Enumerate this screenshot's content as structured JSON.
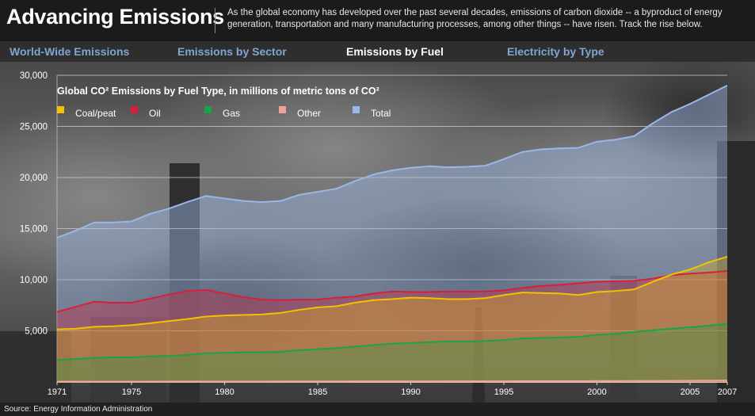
{
  "header": {
    "title": "Advancing Emissions",
    "description": "As the global economy has developed over the past several decades, emissions of carbon dioxide -- a byproduct of energy generation, transportation and many manufacturing processes, among other things -- have risen. Track the rise below."
  },
  "tabs": [
    {
      "label": "World-Wide Emissions",
      "active": false
    },
    {
      "label": "Emissions by Sector",
      "active": false
    },
    {
      "label": "Emissions by Fuel",
      "active": true
    },
    {
      "label": "Electricity by Type",
      "active": false
    }
  ],
  "source": "Source: Energy Information Administration",
  "colors": {
    "coal": "#f2c200",
    "oil": "#d81f3a",
    "gas": "#1aa34a",
    "other": "#f0a39a",
    "total": "#9bb7e8",
    "grid": "#cfcfcf",
    "tab_inactive": "#7fa6d3"
  },
  "chart_data": {
    "type": "area",
    "title": "Global CO² Emissions by Fuel Type, in millions of metric tons of CO²",
    "xlabel": "",
    "ylabel": "",
    "ylim": [
      0,
      30000
    ],
    "yticks": [
      5000,
      10000,
      15000,
      20000,
      25000,
      30000
    ],
    "ytick_labels": [
      "5,000",
      "10,000",
      "15,000",
      "20,000",
      "25,000",
      "30,000"
    ],
    "xticks": [
      1971,
      1975,
      1980,
      1985,
      1990,
      1995,
      2000,
      2005,
      2007
    ],
    "xtick_labels": [
      "1971",
      "1975",
      "1980",
      "1985",
      "1990",
      "1995",
      "2000",
      "2005",
      "2007"
    ],
    "xlim": [
      1971,
      2007
    ],
    "grid": true,
    "legend_position": "top-left",
    "x": [
      1971,
      1972,
      1973,
      1974,
      1975,
      1976,
      1977,
      1978,
      1979,
      1980,
      1981,
      1982,
      1983,
      1984,
      1985,
      1986,
      1987,
      1988,
      1989,
      1990,
      1991,
      1992,
      1993,
      1994,
      1995,
      1996,
      1997,
      1998,
      1999,
      2000,
      2001,
      2002,
      2003,
      2004,
      2005,
      2006,
      2007
    ],
    "series": [
      {
        "name": "Coal/peat",
        "key": "coal",
        "values": [
          5150,
          5200,
          5400,
          5450,
          5550,
          5750,
          5950,
          6150,
          6400,
          6500,
          6550,
          6600,
          6750,
          7050,
          7300,
          7400,
          7750,
          8000,
          8100,
          8250,
          8200,
          8100,
          8100,
          8200,
          8500,
          8750,
          8700,
          8650,
          8500,
          8800,
          8900,
          9050,
          9800,
          10500,
          11000,
          11700,
          12250
        ]
      },
      {
        "name": "Oil",
        "key": "oil",
        "values": [
          6850,
          7350,
          7850,
          7750,
          7750,
          8150,
          8550,
          8900,
          9000,
          8650,
          8300,
          8050,
          8000,
          8050,
          8050,
          8250,
          8350,
          8650,
          8850,
          8800,
          8800,
          8850,
          8850,
          8850,
          8950,
          9200,
          9400,
          9500,
          9650,
          9800,
          9850,
          9900,
          10100,
          10450,
          10600,
          10700,
          10850
        ]
      },
      {
        "name": "Gas",
        "key": "gas",
        "values": [
          2150,
          2250,
          2350,
          2400,
          2400,
          2500,
          2550,
          2650,
          2800,
          2850,
          2900,
          2900,
          2950,
          3100,
          3200,
          3300,
          3450,
          3600,
          3750,
          3800,
          3900,
          3950,
          3950,
          4000,
          4100,
          4250,
          4300,
          4350,
          4400,
          4600,
          4700,
          4900,
          5050,
          5200,
          5350,
          5500,
          5700
        ]
      },
      {
        "name": "Other",
        "key": "other",
        "values": [
          30,
          30,
          30,
          30,
          30,
          30,
          35,
          35,
          40,
          40,
          40,
          40,
          45,
          45,
          50,
          50,
          55,
          55,
          60,
          60,
          60,
          65,
          65,
          70,
          70,
          75,
          75,
          80,
          80,
          85,
          90,
          95,
          100,
          110,
          120,
          130,
          140
        ]
      },
      {
        "name": "Total",
        "key": "total",
        "values": [
          14100,
          14800,
          15600,
          15600,
          15700,
          16450,
          16950,
          17600,
          18200,
          17950,
          17700,
          17600,
          17700,
          18300,
          18600,
          18900,
          19650,
          20300,
          20700,
          20950,
          21100,
          21000,
          21050,
          21150,
          21800,
          22500,
          22750,
          22850,
          22900,
          23500,
          23700,
          24050,
          25300,
          26400,
          27200,
          28100,
          29000
        ]
      }
    ]
  }
}
